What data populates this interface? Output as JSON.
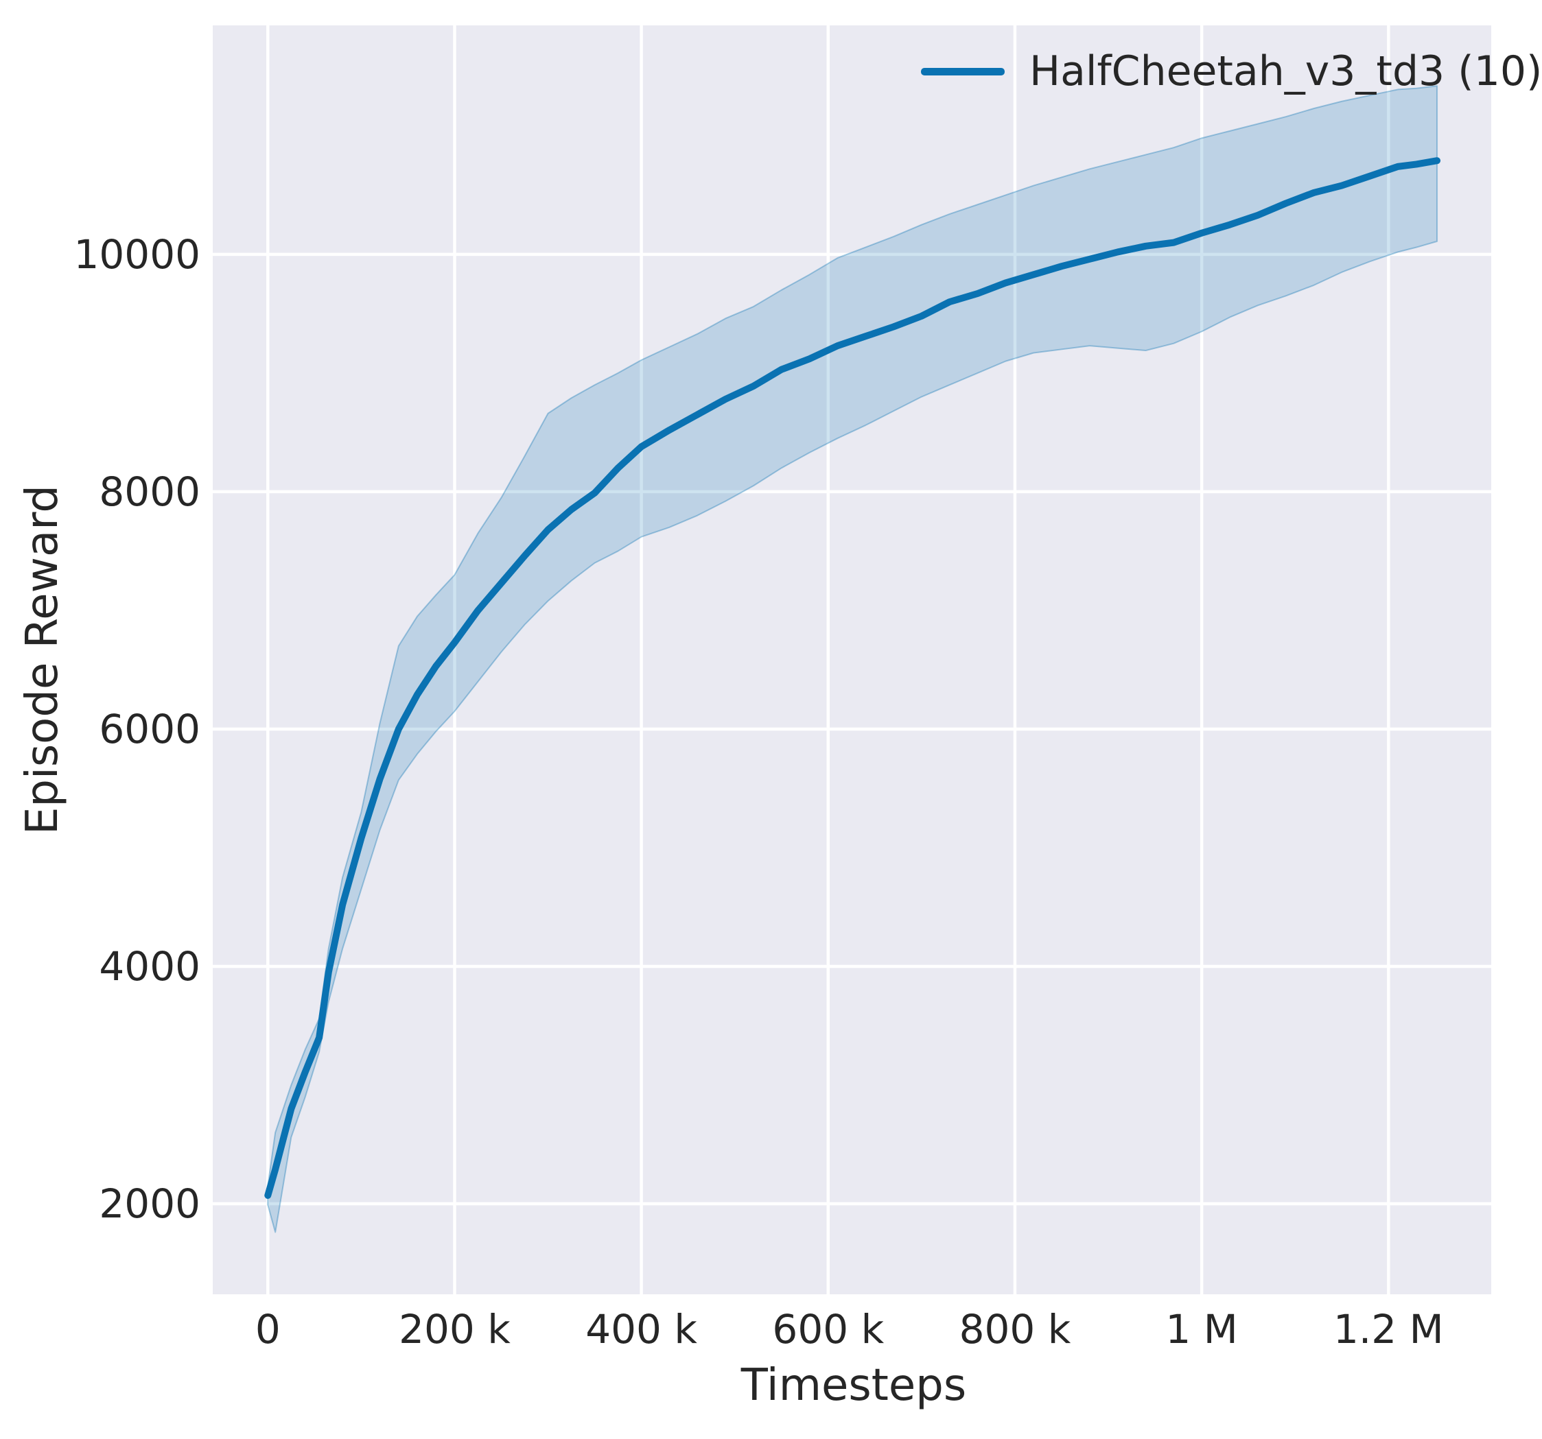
{
  "chart_data": {
    "type": "line",
    "title": "",
    "xlabel": "Timesteps",
    "ylabel": "Episode Reward",
    "legend_position": "upper right inside",
    "grid": true,
    "panel_color": "#eaeaf2",
    "grid_color": "#ffffff",
    "text_color": "#262626",
    "xlim": [
      -59000,
      1310000
    ],
    "ylim": [
      1237,
      11930
    ],
    "xticks": [
      {
        "v": 0,
        "label": "0"
      },
      {
        "v": 200000,
        "label": "200 k"
      },
      {
        "v": 400000,
        "label": "400 k"
      },
      {
        "v": 600000,
        "label": "600 k"
      },
      {
        "v": 800000,
        "label": "800 k"
      },
      {
        "v": 1000000,
        "label": "1 M"
      },
      {
        "v": 1200000,
        "label": "1.2 M"
      }
    ],
    "yticks": [
      {
        "v": 2000,
        "label": "2000"
      },
      {
        "v": 4000,
        "label": "4000"
      },
      {
        "v": 6000,
        "label": "6000"
      },
      {
        "v": 8000,
        "label": "8000"
      },
      {
        "v": 10000,
        "label": "10000"
      }
    ],
    "series": [
      {
        "name": "HalfCheetah_v3_td3 (10)",
        "color": "#0a72b2",
        "band_fill_opacity": 0.2,
        "band_edge_opacity": 0.35,
        "x": [
          0,
          8000,
          25000,
          40000,
          55000,
          65000,
          80000,
          100000,
          120000,
          140000,
          160000,
          180000,
          200000,
          225000,
          250000,
          275000,
          300000,
          325000,
          350000,
          375000,
          400000,
          430000,
          460000,
          490000,
          520000,
          550000,
          580000,
          610000,
          640000,
          670000,
          700000,
          730000,
          760000,
          790000,
          820000,
          850000,
          880000,
          910000,
          940000,
          970000,
          1000000,
          1030000,
          1060000,
          1090000,
          1120000,
          1150000,
          1180000,
          1210000,
          1230000,
          1252000
        ],
        "mean": [
          2070,
          2290,
          2800,
          3110,
          3400,
          3950,
          4520,
          5080,
          5580,
          6000,
          6290,
          6530,
          6730,
          7000,
          7230,
          7460,
          7680,
          7850,
          7990,
          8200,
          8380,
          8520,
          8650,
          8780,
          8890,
          9030,
          9120,
          9230,
          9310,
          9390,
          9480,
          9600,
          9670,
          9760,
          9830,
          9900,
          9960,
          10020,
          10070,
          10100,
          10180,
          10250,
          10330,
          10430,
          10520,
          10580,
          10660,
          10740,
          10760,
          10790
        ],
        "lower": [
          1990,
          1760,
          2560,
          2900,
          3280,
          3700,
          4150,
          4650,
          5150,
          5570,
          5790,
          5980,
          6150,
          6400,
          6650,
          6880,
          7080,
          7250,
          7400,
          7500,
          7620,
          7700,
          7800,
          7920,
          8050,
          8200,
          8330,
          8450,
          8560,
          8680,
          8800,
          8900,
          9000,
          9100,
          9170,
          9200,
          9230,
          9210,
          9190,
          9250,
          9350,
          9470,
          9570,
          9650,
          9740,
          9850,
          9940,
          10020,
          10060,
          10110
        ],
        "upper": [
          2150,
          2600,
          3000,
          3300,
          3560,
          4150,
          4750,
          5300,
          6050,
          6700,
          6950,
          7130,
          7300,
          7650,
          7950,
          8300,
          8660,
          8790,
          8900,
          9000,
          9110,
          9220,
          9330,
          9460,
          9560,
          9700,
          9830,
          9970,
          10060,
          10150,
          10250,
          10340,
          10420,
          10500,
          10580,
          10650,
          10720,
          10780,
          10840,
          10900,
          10980,
          11040,
          11100,
          11160,
          11230,
          11290,
          11340,
          11390,
          11400,
          11420
        ]
      }
    ]
  }
}
